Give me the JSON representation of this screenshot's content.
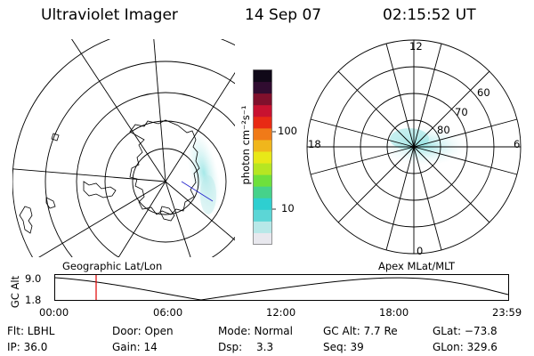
{
  "header": {
    "title": "Ultraviolet Imager",
    "date": "14 Sep 07",
    "time": "02:15:52 UT"
  },
  "colorbar": {
    "unit_label": "photon cm⁻²s⁻¹",
    "ticks": [
      "100",
      "10"
    ],
    "colors": [
      "#e8e8ee",
      "#b8e8e8",
      "#5cd6d6",
      "#2ecfd0",
      "#46d28a",
      "#6ee03c",
      "#b6e622",
      "#e8e818",
      "#f0b61c",
      "#f07a18",
      "#e82a14",
      "#c81230",
      "#80102c",
      "#300c30",
      "#100818"
    ]
  },
  "geo_map": {
    "label": "Geographic Lat/Lon"
  },
  "polar_plot": {
    "label": "Apex MLat/MLT",
    "mlt_labels": [
      "12",
      "18",
      "6",
      "0"
    ],
    "lat_labels": [
      "60",
      "70",
      "80"
    ]
  },
  "timeline": {
    "ylabel": "GC Alt",
    "y_ticks": [
      "9.0",
      "1.8"
    ],
    "x_ticks": [
      "00:00",
      "06:00",
      "12:00",
      "18:00",
      "23:59"
    ],
    "current_marker": "02:15",
    "marker_color": "#e00000"
  },
  "info": {
    "flt": "Flt: LBHL",
    "door": "Door: Open",
    "mode": "Mode: Normal",
    "gc_alt": "GC Alt: 7.7 Re",
    "glat": "GLat: −73.8",
    "ip": "IP: 36.0",
    "gain": "Gain: 14",
    "dsp_label": "Dsp:",
    "dsp_value": "3.3",
    "seq": "Seq: 39",
    "glon": "GLon: 329.6"
  }
}
